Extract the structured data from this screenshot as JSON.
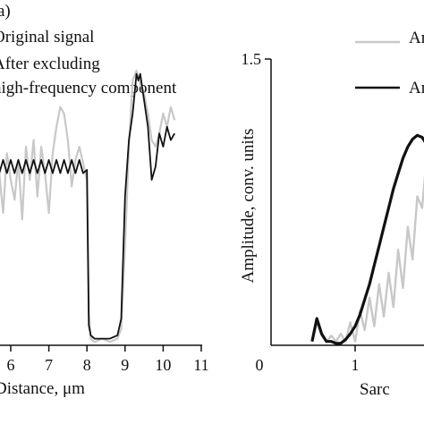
{
  "chart_data": [
    {
      "type": "line",
      "panel_label": "a)",
      "legend": [
        "Original signal",
        "After excluding",
        "high-frequency component"
      ],
      "xlabel": "Distance, μm",
      "x_ticks": [
        "6",
        "7",
        "8",
        "9",
        "10",
        "11"
      ],
      "xlim": [
        5,
        11
      ],
      "ylim": [
        0,
        1
      ],
      "series": [
        {
          "name": "Original signal",
          "color": "#c8c8c8",
          "x": [
            5.0,
            5.1,
            5.2,
            5.3,
            5.4,
            5.5,
            5.6,
            5.7,
            5.8,
            5.9,
            6.0,
            6.1,
            6.2,
            6.3,
            6.4,
            6.5,
            6.6,
            6.7,
            6.8,
            6.9,
            7.0,
            7.1,
            7.2,
            7.3,
            7.4,
            7.5,
            7.6,
            7.7,
            7.8,
            7.9,
            8.0,
            8.05,
            8.1,
            8.2,
            8.4,
            8.6,
            8.8,
            8.9,
            9.0,
            9.1,
            9.2,
            9.3,
            9.4,
            9.5,
            9.6,
            9.7,
            9.8,
            9.9,
            10.0,
            10.1,
            10.2,
            10.3
          ],
          "y": [
            0.35,
            0.48,
            0.55,
            0.42,
            0.5,
            0.6,
            0.45,
            0.52,
            0.4,
            0.58,
            0.5,
            0.44,
            0.56,
            0.38,
            0.6,
            0.5,
            0.62,
            0.45,
            0.6,
            0.52,
            0.4,
            0.58,
            0.66,
            0.72,
            0.7,
            0.62,
            0.48,
            0.56,
            0.6,
            0.55,
            0.5,
            0.1,
            0.02,
            0.01,
            0.02,
            0.01,
            0.02,
            0.05,
            0.3,
            0.6,
            0.8,
            0.83,
            0.79,
            0.76,
            0.7,
            0.62,
            0.6,
            0.64,
            0.7,
            0.66,
            0.72,
            0.68
          ]
        },
        {
          "name": "After excluding high-frequency component",
          "color": "#111111",
          "x": [
            5.0,
            5.1,
            5.2,
            5.3,
            5.4,
            5.5,
            5.6,
            5.7,
            5.8,
            5.9,
            6.0,
            6.1,
            6.2,
            6.3,
            6.4,
            6.5,
            6.6,
            6.7,
            6.8,
            6.9,
            7.0,
            7.1,
            7.2,
            7.3,
            7.4,
            7.5,
            7.6,
            7.7,
            7.8,
            7.9,
            8.0,
            8.05,
            8.1,
            8.2,
            8.4,
            8.6,
            8.8,
            8.9,
            9.0,
            9.1,
            9.2,
            9.3,
            9.35,
            9.4,
            9.5,
            9.6,
            9.7,
            9.8,
            9.9,
            10.0,
            10.1,
            10.2,
            10.3
          ],
          "y": [
            0.56,
            0.52,
            0.56,
            0.52,
            0.56,
            0.52,
            0.56,
            0.52,
            0.56,
            0.52,
            0.56,
            0.52,
            0.56,
            0.52,
            0.56,
            0.52,
            0.56,
            0.52,
            0.56,
            0.52,
            0.56,
            0.52,
            0.56,
            0.52,
            0.56,
            0.52,
            0.56,
            0.52,
            0.56,
            0.52,
            0.53,
            0.06,
            0.03,
            0.02,
            0.02,
            0.02,
            0.03,
            0.08,
            0.45,
            0.62,
            0.7,
            0.82,
            0.8,
            0.82,
            0.74,
            0.66,
            0.5,
            0.54,
            0.64,
            0.6,
            0.66,
            0.62,
            0.64
          ]
        }
      ]
    },
    {
      "type": "line",
      "legend": [
        "Amplitude spectrum",
        "Amplitude spectrum"
      ],
      "ylabel": "Amplitude, conv. units",
      "xlabel": "Sarc",
      "x_ticks": [
        "0",
        "1"
      ],
      "y_ticks": [
        "1.5"
      ],
      "xlim": [
        0,
        2.0
      ],
      "ylim": [
        0,
        1.5
      ],
      "series": [
        {
          "color": "#c8c8c8",
          "x": [
            0.55,
            0.6,
            0.65,
            0.7,
            0.75,
            0.8,
            0.85,
            0.9,
            0.95,
            1.0,
            1.05,
            1.1,
            1.15,
            1.2,
            1.25,
            1.3,
            1.35,
            1.4,
            1.45,
            1.5,
            1.55,
            1.6,
            1.65,
            1.7,
            1.75,
            1.8,
            1.85,
            1.9,
            1.95,
            2.0
          ],
          "y": [
            0.02,
            0.12,
            0.05,
            0.02,
            0.05,
            0.02,
            0.06,
            0.02,
            0.12,
            0.02,
            0.18,
            0.08,
            0.25,
            0.1,
            0.32,
            0.15,
            0.38,
            0.2,
            0.5,
            0.3,
            0.62,
            0.45,
            0.78,
            0.72,
            1.0,
            1.04,
            0.6,
            0.82,
            0.3,
            0.4
          ]
        },
        {
          "color": "#111111",
          "x": [
            0.55,
            0.6,
            0.65,
            0.7,
            0.75,
            0.8,
            0.85,
            0.9,
            0.95,
            1.0,
            1.05,
            1.1,
            1.15,
            1.2,
            1.25,
            1.3,
            1.35,
            1.4,
            1.45,
            1.5,
            1.55,
            1.6,
            1.65,
            1.7,
            1.75,
            1.8,
            1.85,
            1.9,
            1.95,
            2.0
          ],
          "y": [
            0.02,
            0.14,
            0.06,
            0.02,
            0.02,
            0.01,
            0.01,
            0.03,
            0.06,
            0.1,
            0.16,
            0.24,
            0.32,
            0.42,
            0.52,
            0.62,
            0.72,
            0.82,
            0.9,
            0.98,
            1.04,
            1.08,
            1.1,
            1.09,
            1.05,
            0.98,
            0.9,
            0.8,
            0.7,
            0.6
          ]
        }
      ]
    }
  ]
}
